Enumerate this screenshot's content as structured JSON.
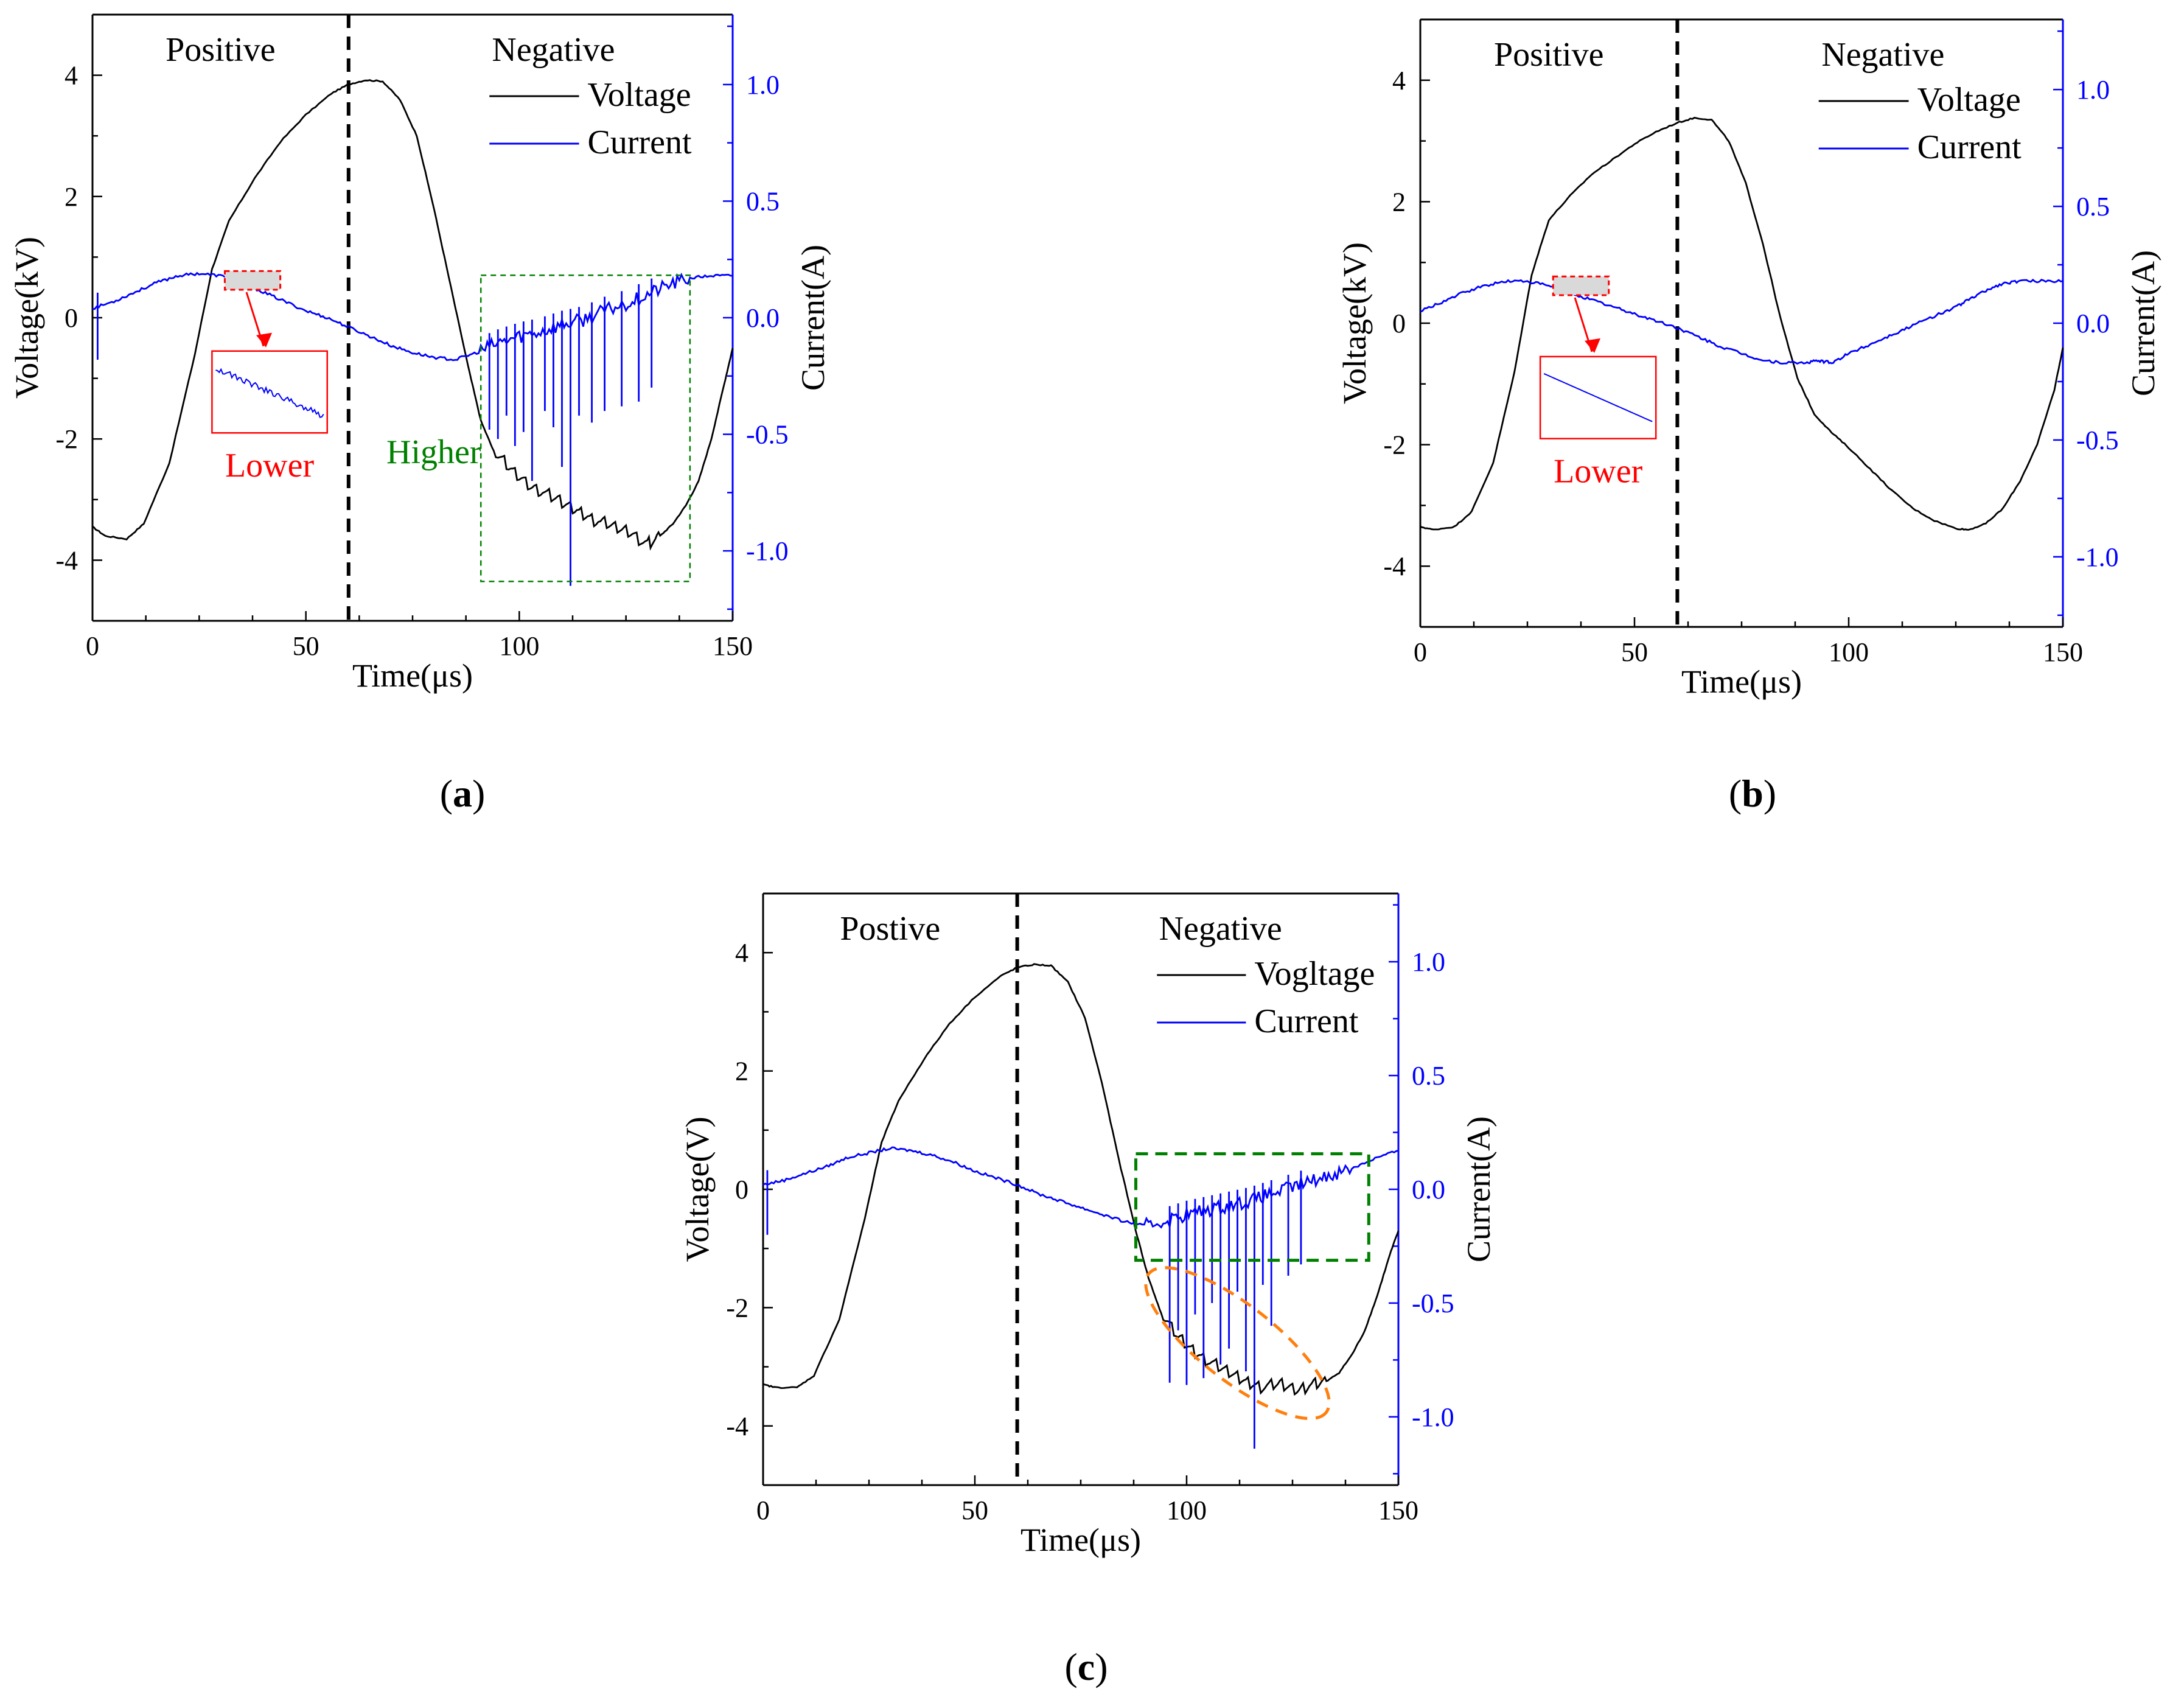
{
  "colors": {
    "voltage": "#000000",
    "current": "#0000ff",
    "lower": "#ff0000",
    "higher": "#008000",
    "ellipse": "#ff7f0e",
    "inset_fill": "#d9d9d9"
  },
  "chart_data": [
    {
      "id": "a",
      "type": "line",
      "caption_letter": "a",
      "xlabel": "Time(μs)",
      "ylabel": "Voltage(kV)",
      "y2label": "Current(A)",
      "xlim": [
        0,
        150
      ],
      "ylim": [
        -5,
        5
      ],
      "y2lim": [
        -1.3,
        1.3
      ],
      "xticks": [
        0,
        50,
        100,
        150
      ],
      "yticks": [
        4,
        2,
        0,
        -2,
        -4
      ],
      "ytick_labels": [
        "4",
        "2",
        "0",
        "-2",
        "-4"
      ],
      "y2ticks": [
        1.0,
        0.5,
        0.0,
        -0.5,
        -1.0
      ],
      "y2tick_labels": [
        "1.0",
        "0.5",
        "0.0",
        "-0.5",
        "-1.0"
      ],
      "divider_x": 60,
      "region_labels": {
        "left": "Positive",
        "right": "Negative"
      },
      "legend": [
        "Voltage",
        "Current"
      ],
      "annotations": {
        "lower": "Lower",
        "higher": "Higher"
      },
      "voltage_kv": {
        "x": [
          0,
          3,
          8,
          12,
          18,
          24,
          28,
          32,
          38,
          44,
          50,
          56,
          60,
          64,
          68,
          72,
          76,
          80,
          84,
          88,
          91,
          94,
          98,
          102,
          106,
          110,
          114,
          118,
          122,
          126,
          130,
          133,
          136,
          139,
          142,
          145,
          148,
          150
        ],
        "y": [
          -3.45,
          -3.6,
          -3.65,
          -3.4,
          -2.4,
          -0.6,
          0.8,
          1.6,
          2.3,
          2.9,
          3.35,
          3.7,
          3.85,
          3.92,
          3.9,
          3.6,
          3.0,
          1.8,
          0.5,
          -0.8,
          -1.7,
          -2.2,
          -2.5,
          -2.75,
          -2.9,
          -3.05,
          -3.2,
          -3.35,
          -3.45,
          -3.55,
          -3.75,
          -3.6,
          -3.4,
          -3.1,
          -2.7,
          -2.0,
          -1.1,
          -0.5
        ]
      },
      "current_a": {
        "x": [
          0,
          5,
          10,
          15,
          20,
          25,
          30,
          35,
          40,
          45,
          50,
          55,
          60,
          65,
          70,
          75,
          80,
          85,
          90,
          95,
          100,
          105,
          110,
          115,
          120,
          125,
          130,
          135,
          140,
          145,
          150
        ],
        "y": [
          0.04,
          0.07,
          0.11,
          0.15,
          0.18,
          0.19,
          0.18,
          0.15,
          0.11,
          0.07,
          0.03,
          0.0,
          -0.04,
          -0.08,
          -0.12,
          -0.15,
          -0.17,
          -0.18,
          -0.15,
          -0.11,
          -0.08,
          -0.06,
          -0.03,
          -0.01,
          0.03,
          0.06,
          0.1,
          0.14,
          0.17,
          0.18,
          0.18
        ]
      },
      "current_spikes_a": [
        {
          "x": 1.2,
          "y": -0.18
        },
        {
          "x": 93,
          "y": -0.48
        },
        {
          "x": 95,
          "y": -0.52
        },
        {
          "x": 97,
          "y": -0.42
        },
        {
          "x": 99,
          "y": -0.55
        },
        {
          "x": 101,
          "y": -0.49
        },
        {
          "x": 103,
          "y": -0.7
        },
        {
          "x": 106,
          "y": -0.4
        },
        {
          "x": 108,
          "y": -0.47
        },
        {
          "x": 110,
          "y": -0.64
        },
        {
          "x": 112,
          "y": -1.15
        },
        {
          "x": 114,
          "y": -0.42
        },
        {
          "x": 117,
          "y": -0.45
        },
        {
          "x": 120,
          "y": -0.4
        },
        {
          "x": 124,
          "y": -0.38
        },
        {
          "x": 128,
          "y": -0.36
        },
        {
          "x": 131,
          "y": -0.3
        }
      ],
      "voltage_sawtooth": true,
      "inset": true,
      "dashed_box": [
        91,
        140,
        -4.35,
        0.7
      ]
    },
    {
      "id": "b",
      "type": "line",
      "caption_letter": "b",
      "xlabel": "Time(μs)",
      "ylabel": "Voltage(kV)",
      "y2label": "Current(A)",
      "xlim": [
        0,
        150
      ],
      "ylim": [
        -5,
        5
      ],
      "y2lim": [
        -1.3,
        1.3
      ],
      "xticks": [
        0,
        50,
        100,
        150
      ],
      "yticks": [
        4,
        2,
        0,
        -2,
        -4
      ],
      "ytick_labels": [
        "4",
        "2",
        "0",
        "-2",
        "-4"
      ],
      "y2ticks": [
        1.0,
        0.5,
        0.0,
        -0.5,
        -1.0
      ],
      "y2tick_labels": [
        "1.0",
        "0.5",
        "0.0",
        "-0.5",
        "-1.0"
      ],
      "divider_x": 60,
      "region_labels": {
        "left": "Positive",
        "right": "Negative"
      },
      "legend": [
        "Voltage",
        "Current"
      ],
      "annotations": {
        "lower": "Lower"
      },
      "voltage_kv": {
        "x": [
          0,
          3,
          8,
          12,
          17,
          22,
          26,
          30,
          35,
          40,
          45,
          50,
          55,
          60,
          64,
          68,
          72,
          76,
          80,
          84,
          88,
          92,
          96,
          100,
          105,
          110,
          115,
          120,
          125,
          128,
          132,
          136,
          140,
          144,
          148,
          150
        ],
        "y": [
          -3.35,
          -3.4,
          -3.35,
          -3.1,
          -2.3,
          -0.8,
          0.8,
          1.7,
          2.1,
          2.45,
          2.7,
          2.95,
          3.15,
          3.3,
          3.38,
          3.35,
          3.0,
          2.3,
          1.3,
          0.1,
          -0.9,
          -1.5,
          -1.8,
          -2.05,
          -2.4,
          -2.75,
          -3.05,
          -3.25,
          -3.38,
          -3.4,
          -3.3,
          -3.05,
          -2.6,
          -2.0,
          -1.1,
          -0.4
        ]
      },
      "current_a": {
        "x": [
          0,
          5,
          10,
          15,
          20,
          25,
          30,
          35,
          40,
          45,
          50,
          55,
          60,
          65,
          70,
          75,
          80,
          85,
          90,
          93,
          96,
          100,
          105,
          110,
          115,
          120,
          125,
          128,
          132,
          136,
          140,
          145,
          150
        ],
        "y": [
          0.05,
          0.09,
          0.13,
          0.16,
          0.18,
          0.18,
          0.16,
          0.13,
          0.1,
          0.07,
          0.04,
          0.01,
          -0.02,
          -0.06,
          -0.1,
          -0.13,
          -0.16,
          -0.17,
          -0.17,
          -0.16,
          -0.17,
          -0.13,
          -0.09,
          -0.05,
          -0.01,
          0.03,
          0.07,
          0.1,
          0.14,
          0.17,
          0.18,
          0.18,
          0.18
        ]
      },
      "current_spikes_a": [],
      "voltage_sawtooth": false,
      "inset": true,
      "dashed_box": null
    },
    {
      "id": "c",
      "type": "line",
      "caption_letter": "c",
      "xlabel": "Time(μs)",
      "ylabel": "Voltage(V)",
      "y2label": "Current(A)",
      "xlim": [
        0,
        150
      ],
      "ylim": [
        -5,
        5
      ],
      "y2lim": [
        -1.3,
        1.3
      ],
      "xticks": [
        0,
        50,
        100,
        150
      ],
      "yticks": [
        4,
        2,
        0,
        -2,
        -4
      ],
      "ytick_labels": [
        "4",
        "2",
        "0",
        "-2",
        "-4"
      ],
      "y2ticks": [
        1.0,
        0.5,
        0.0,
        -0.5,
        -1.0
      ],
      "y2tick_labels": [
        "1.0",
        "0.5",
        "0.0",
        "-0.5",
        "-1.0"
      ],
      "divider_x": 60,
      "region_labels": {
        "left": "Postive",
        "right": "Negative"
      },
      "legend": [
        "Vogltage",
        "Current"
      ],
      "annotations": {},
      "voltage_kv": {
        "x": [
          0,
          3,
          8,
          12,
          18,
          24,
          28,
          32,
          38,
          44,
          50,
          56,
          60,
          64,
          68,
          72,
          76,
          80,
          84,
          88,
          91,
          94,
          98,
          102,
          106,
          110,
          114,
          118,
          122,
          126,
          130,
          133,
          136,
          139,
          142,
          145,
          148,
          150
        ],
        "y": [
          -3.3,
          -3.35,
          -3.35,
          -3.15,
          -2.2,
          -0.5,
          0.8,
          1.5,
          2.2,
          2.8,
          3.25,
          3.6,
          3.75,
          3.8,
          3.78,
          3.5,
          2.9,
          1.8,
          0.5,
          -0.7,
          -1.5,
          -2.1,
          -2.5,
          -2.75,
          -2.95,
          -3.1,
          -3.25,
          -3.35,
          -3.3,
          -3.4,
          -3.3,
          -3.25,
          -3.1,
          -2.8,
          -2.4,
          -1.8,
          -1.1,
          -0.7
        ]
      },
      "current_a": {
        "x": [
          0,
          5,
          10,
          15,
          20,
          25,
          30,
          35,
          40,
          45,
          50,
          55,
          60,
          65,
          70,
          75,
          80,
          85,
          90,
          95,
          100,
          105,
          110,
          115,
          120,
          125,
          130,
          135,
          140,
          145,
          150
        ],
        "y": [
          0.02,
          0.04,
          0.07,
          0.1,
          0.14,
          0.16,
          0.18,
          0.17,
          0.15,
          0.12,
          0.08,
          0.05,
          0.02,
          -0.02,
          -0.05,
          -0.08,
          -0.11,
          -0.14,
          -0.16,
          -0.14,
          -0.11,
          -0.09,
          -0.07,
          -0.05,
          -0.02,
          0.01,
          0.04,
          0.07,
          0.1,
          0.14,
          0.17
        ]
      },
      "current_spikes_a": [
        {
          "x": 1.0,
          "y": -0.2
        },
        {
          "x": 96,
          "y": -0.85
        },
        {
          "x": 98,
          "y": -0.62
        },
        {
          "x": 100,
          "y": -0.86
        },
        {
          "x": 102,
          "y": -0.55
        },
        {
          "x": 104,
          "y": -0.83
        },
        {
          "x": 106,
          "y": -0.5
        },
        {
          "x": 108,
          "y": -0.77
        },
        {
          "x": 110,
          "y": -0.7
        },
        {
          "x": 112,
          "y": -0.45
        },
        {
          "x": 114,
          "y": -0.8
        },
        {
          "x": 116,
          "y": -1.14
        },
        {
          "x": 118,
          "y": -0.42
        },
        {
          "x": 120,
          "y": -0.6
        },
        {
          "x": 124,
          "y": -0.38
        },
        {
          "x": 127,
          "y": -0.33
        }
      ],
      "voltage_sawtooth": true,
      "inset": false,
      "dashed_box": [
        88,
        143,
        -1.2,
        0.6
      ],
      "dashed_ellipse": true
    }
  ]
}
